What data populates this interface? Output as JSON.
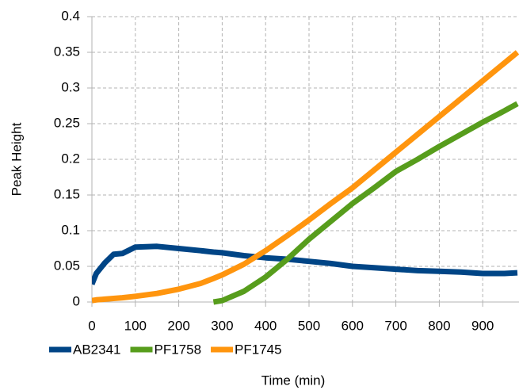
{
  "chart_data": {
    "type": "line",
    "x_label": "Time (min)",
    "y_label": "Peak Height",
    "x": [
      0,
      10,
      30,
      50,
      70,
      100,
      150,
      200,
      250,
      280,
      300,
      350,
      400,
      450,
      500,
      550,
      600,
      650,
      700,
      750,
      800,
      850,
      900,
      950,
      980
    ],
    "series": [
      {
        "name": "AB2341",
        "color": "#004586",
        "values": [
          0.025,
          0.04,
          0.055,
          0.067,
          0.068,
          0.077,
          0.078,
          0.075,
          0.072,
          0.07,
          0.069,
          0.065,
          0.062,
          0.06,
          0.057,
          0.054,
          0.05,
          0.048,
          0.046,
          0.044,
          0.043,
          0.042,
          0.04,
          0.04,
          0.041
        ]
      },
      {
        "name": "PF1758",
        "color": "#579d1c",
        "values": [
          null,
          null,
          null,
          null,
          null,
          null,
          null,
          null,
          null,
          0,
          0.002,
          0.015,
          0.035,
          0.06,
          0.088,
          0.113,
          0.138,
          0.16,
          0.183,
          0.2,
          0.218,
          0.235,
          0.252,
          0.268,
          0.278
        ]
      },
      {
        "name": "PF1745",
        "color": "#ff950e",
        "values": [
          0.002,
          0.003,
          0.004,
          0.005,
          0.006,
          0.008,
          0.012,
          0.018,
          0.026,
          0.033,
          0.038,
          0.053,
          0.072,
          0.093,
          0.115,
          0.138,
          0.16,
          0.185,
          0.21,
          0.235,
          0.26,
          0.285,
          0.31,
          0.335,
          0.35
        ]
      }
    ],
    "xlim": [
      0,
      980
    ],
    "ylim": [
      0,
      0.4
    ],
    "xticks": [
      0,
      100,
      200,
      300,
      400,
      500,
      600,
      700,
      800,
      900
    ],
    "yticks": [
      0,
      0.05,
      0.1,
      0.15,
      0.2,
      0.25,
      0.3,
      0.35,
      0.4
    ],
    "grid": true,
    "legend": "bottom-left"
  }
}
